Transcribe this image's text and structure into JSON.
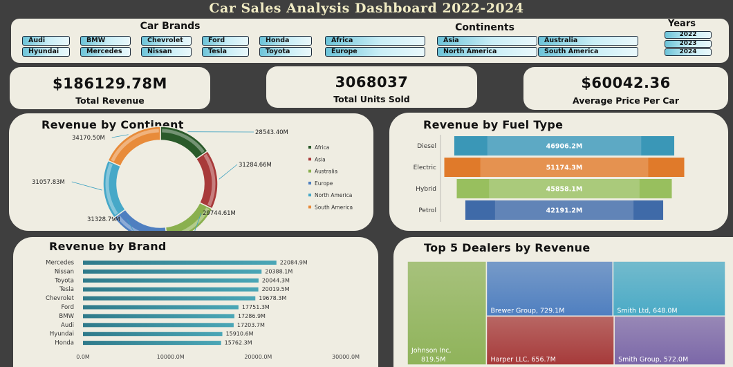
{
  "title": "Car Sales Analysis Dashboard 2022-2024",
  "slicers": {
    "brands_title": "Car Brands",
    "brands": [
      "Audi",
      "BMW",
      "Chevrolet",
      "Ford",
      "Honda",
      "Hyundai",
      "Mercedes",
      "Nissan",
      "Tesla",
      "Toyota"
    ],
    "continents_title": "Continents",
    "continents": [
      "Africa",
      "Asia",
      "Australia",
      "Europe",
      "North America",
      "South America"
    ],
    "years_title": "Years",
    "years": [
      "2022",
      "2023",
      "2024"
    ]
  },
  "kpis": [
    {
      "value": "$186129.78M",
      "label": "Total Revenue"
    },
    {
      "value": "3068037",
      "label": "Total Units Sold"
    },
    {
      "value": "$60042.36",
      "label": "Average Price Per Car"
    }
  ],
  "chart_data": [
    {
      "type": "pie",
      "title": "Revenue by Continent",
      "categories": [
        "Africa",
        "Asia",
        "Australia",
        "Europe",
        "North America",
        "South America"
      ],
      "values": [
        28543.4,
        31284.66,
        29744.61,
        31328.79,
        31057.83,
        34170.5
      ],
      "labels": [
        "28543.40M",
        "31284.66M",
        "29744.61M",
        "31328.79M",
        "31057.83M",
        "34170.50M"
      ],
      "colors": [
        "#2a5a2a",
        "#a83a3a",
        "#8ab04e",
        "#4f7fc0",
        "#46a8c8",
        "#e88b3a"
      ],
      "legend": "right"
    },
    {
      "type": "bar",
      "orientation": "horizontal",
      "title": "Revenue by Fuel Type",
      "categories": [
        "Diesel",
        "Electric",
        "Hybrid",
        "Petrol"
      ],
      "values": [
        46906.2,
        51174.3,
        45858.1,
        42191.2
      ],
      "labels": [
        "46906.2M",
        "51174.3M",
        "45858.1M",
        "42191.2M"
      ],
      "colors": [
        "#3a97b7",
        "#e07a2a",
        "#98bf5e",
        "#3f6aa8"
      ]
    },
    {
      "type": "bar",
      "orientation": "horizontal",
      "title": "Revenue by Brand",
      "categories": [
        "Mercedes",
        "Nissan",
        "Toyota",
        "Tesla",
        "Chevrolet",
        "Ford",
        "BMW",
        "Audi",
        "Hyundai",
        "Honda"
      ],
      "values": [
        22084.9,
        20388.1,
        20044.3,
        20019.5,
        19678.3,
        17751.3,
        17286.9,
        17203.7,
        15910.6,
        15762.3
      ],
      "labels": [
        "22084.9M",
        "20388.1M",
        "20044.3M",
        "20019.5M",
        "19678.3M",
        "17751.3M",
        "17286.9M",
        "17203.7M",
        "15910.6M",
        "15762.3M"
      ],
      "xticks": [
        "0.0M",
        "10000.0M",
        "20000.0M",
        "30000.0M"
      ],
      "xlim": [
        0,
        30000
      ],
      "color": "#3a8a9a"
    },
    {
      "type": "treemap",
      "title": "Top 5 Dealers by Revenue",
      "categories": [
        "Johnson Inc",
        "Brewer Group",
        "Smith Ltd",
        "Harper LLC",
        "Smith Group"
      ],
      "values": [
        819.5,
        729.1,
        648.0,
        656.7,
        572.0
      ],
      "labels": [
        "Johnson Inc, 819.5M",
        "Brewer Group, 729.1M",
        "Smith Ltd, 648.0M",
        "Harper LLC, 656.7M",
        "Smith Group, 572.0M"
      ],
      "colors": [
        "#8fb35a",
        "#4f7fc0",
        "#4aaac6",
        "#a63a3a",
        "#7b67a8"
      ]
    }
  ]
}
